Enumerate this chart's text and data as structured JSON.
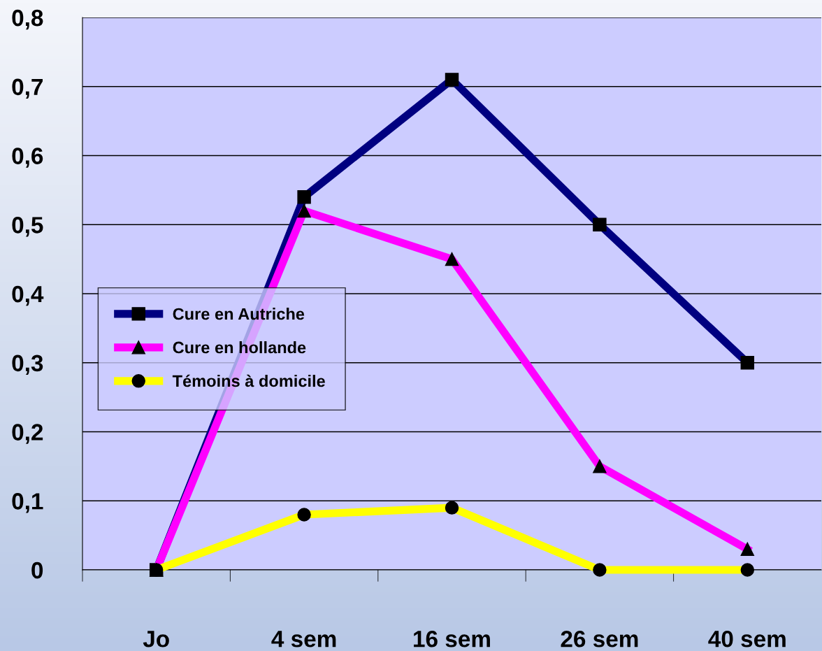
{
  "chart_data": {
    "type": "line",
    "categories": [
      "Jo",
      "4 sem",
      "16 sem",
      "26 sem",
      "40 sem"
    ],
    "series": [
      {
        "name": "Cure en Autriche",
        "color": "#000080",
        "marker": "square",
        "values": [
          0,
          0.54,
          0.71,
          0.5,
          0.3
        ]
      },
      {
        "name": "Cure en hollande",
        "color": "#ff00ff",
        "marker": "triangle",
        "values": [
          0,
          0.52,
          0.45,
          0.15,
          0.03
        ]
      },
      {
        "name": "Témoins à domicile",
        "color": "#ffff00",
        "marker": "circle",
        "values": [
          0,
          0.08,
          0.09,
          0,
          0
        ]
      }
    ],
    "ylim": [
      0,
      0.8
    ],
    "yticks": [
      {
        "value": 0,
        "label": "0"
      },
      {
        "value": 0.1,
        "label": "0,1"
      },
      {
        "value": 0.2,
        "label": "0,2"
      },
      {
        "value": 0.3,
        "label": "0,3"
      },
      {
        "value": 0.4,
        "label": "0,4"
      },
      {
        "value": 0.5,
        "label": "0,5"
      },
      {
        "value": 0.6,
        "label": "0,6"
      },
      {
        "value": 0.7,
        "label": "0,7"
      },
      {
        "value": 0.8,
        "label": "0,8"
      }
    ],
    "grid": "y",
    "legend": "center left",
    "line_style": "solid"
  }
}
